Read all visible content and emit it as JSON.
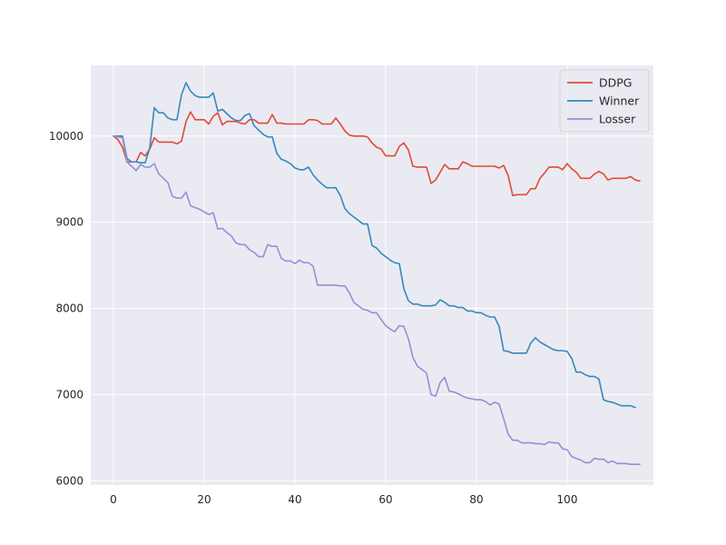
{
  "chart_data": {
    "type": "line",
    "title": "",
    "xlabel": "",
    "ylabel": "",
    "xlim": [
      -5,
      119
    ],
    "ylim": [
      5950,
      10820
    ],
    "xticks": [
      0,
      20,
      40,
      60,
      80,
      100
    ],
    "yticks": [
      6000,
      7000,
      8000,
      9000,
      10000
    ],
    "grid": true,
    "legend_position": "top-right",
    "series": [
      {
        "name": "DDPG",
        "color": "#e24a33",
        "values": [
          10000,
          9960,
          9870,
          9700,
          9700,
          9700,
          9810,
          9770,
          9850,
          9980,
          9930,
          9930,
          9930,
          9930,
          9910,
          9940,
          10170,
          10280,
          10190,
          10190,
          10190,
          10140,
          10230,
          10270,
          10130,
          10170,
          10170,
          10170,
          10150,
          10140,
          10190,
          10190,
          10150,
          10150,
          10150,
          10250,
          10150,
          10150,
          10140,
          10140,
          10140,
          10140,
          10140,
          10190,
          10190,
          10180,
          10140,
          10140,
          10140,
          10210,
          10140,
          10060,
          10010,
          10000,
          10000,
          10000,
          9990,
          9920,
          9870,
          9850,
          9770,
          9770,
          9770,
          9880,
          9920,
          9840,
          9650,
          9640,
          9640,
          9640,
          9450,
          9490,
          9580,
          9670,
          9620,
          9620,
          9620,
          9700,
          9680,
          9650,
          9650,
          9650,
          9650,
          9650,
          9650,
          9630,
          9660,
          9540,
          9310,
          9320,
          9320,
          9320,
          9390,
          9390,
          9510,
          9570,
          9640,
          9640,
          9640,
          9610,
          9680,
          9620,
          9580,
          9510,
          9510,
          9510,
          9560,
          9590,
          9560,
          9490,
          9510,
          9510,
          9510,
          9510,
          9530,
          9490,
          9480
        ]
      },
      {
        "name": "Winner",
        "color": "#348abd",
        "values": [
          10000,
          10000,
          10000,
          9740,
          9700,
          9700,
          9690,
          9690,
          9860,
          10330,
          10270,
          10270,
          10210,
          10190,
          10190,
          10480,
          10620,
          10520,
          10470,
          10450,
          10450,
          10450,
          10500,
          10290,
          10310,
          10260,
          10210,
          10180,
          10180,
          10240,
          10260,
          10120,
          10070,
          10020,
          9990,
          9990,
          9800,
          9730,
          9710,
          9680,
          9630,
          9610,
          9610,
          9640,
          9550,
          9490,
          9440,
          9400,
          9400,
          9400,
          9310,
          9160,
          9100,
          9060,
          9020,
          8980,
          8980,
          8730,
          8700,
          8640,
          8600,
          8560,
          8530,
          8520,
          8230,
          8090,
          8050,
          8050,
          8030,
          8030,
          8030,
          8040,
          8100,
          8070,
          8030,
          8030,
          8010,
          8010,
          7970,
          7970,
          7950,
          7950,
          7920,
          7900,
          7900,
          7790,
          7510,
          7500,
          7480,
          7480,
          7480,
          7480,
          7600,
          7660,
          7610,
          7580,
          7550,
          7520,
          7510,
          7510,
          7500,
          7420,
          7260,
          7260,
          7230,
          7210,
          7210,
          7180,
          6940,
          6920,
          6910,
          6890,
          6870,
          6870,
          6870,
          6850
        ]
      },
      {
        "name": "Losser",
        "color": "#988ed5",
        "values": [
          10000,
          9990,
          9980,
          9700,
          9650,
          9600,
          9670,
          9640,
          9640,
          9680,
          9560,
          9510,
          9460,
          9300,
          9280,
          9280,
          9350,
          9190,
          9170,
          9150,
          9120,
          9090,
          9110,
          8920,
          8930,
          8880,
          8840,
          8760,
          8740,
          8740,
          8680,
          8650,
          8600,
          8600,
          8740,
          8720,
          8720,
          8580,
          8550,
          8550,
          8520,
          8560,
          8530,
          8530,
          8490,
          8270,
          8270,
          8270,
          8270,
          8270,
          8260,
          8260,
          8180,
          8070,
          8030,
          7990,
          7980,
          7950,
          7950,
          7870,
          7800,
          7760,
          7730,
          7800,
          7790,
          7650,
          7430,
          7330,
          7290,
          7250,
          7000,
          6980,
          7140,
          7200,
          7040,
          7030,
          7010,
          6980,
          6960,
          6950,
          6940,
          6940,
          6920,
          6880,
          6910,
          6890,
          6720,
          6540,
          6470,
          6470,
          6440,
          6440,
          6440,
          6430,
          6430,
          6420,
          6450,
          6440,
          6440,
          6370,
          6360,
          6280,
          6260,
          6240,
          6210,
          6210,
          6260,
          6250,
          6250,
          6210,
          6230,
          6200,
          6200,
          6200,
          6190,
          6190,
          6190
        ]
      }
    ]
  }
}
